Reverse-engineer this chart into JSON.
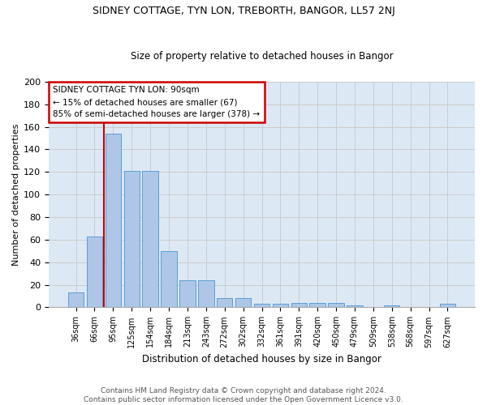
{
  "title": "SIDNEY COTTAGE, TYN LON, TREBORTH, BANGOR, LL57 2NJ",
  "subtitle": "Size of property relative to detached houses in Bangor",
  "xlabel": "Distribution of detached houses by size in Bangor",
  "ylabel": "Number of detached properties",
  "categories": [
    "36sqm",
    "66sqm",
    "95sqm",
    "125sqm",
    "154sqm",
    "184sqm",
    "213sqm",
    "243sqm",
    "272sqm",
    "302sqm",
    "332sqm",
    "361sqm",
    "391sqm",
    "420sqm",
    "450sqm",
    "479sqm",
    "509sqm",
    "538sqm",
    "568sqm",
    "597sqm",
    "627sqm"
  ],
  "values": [
    13,
    63,
    154,
    121,
    121,
    50,
    24,
    24,
    8,
    8,
    3,
    3,
    4,
    4,
    4,
    2,
    0,
    2,
    0,
    0,
    3
  ],
  "bar_color": "#aec6e8",
  "bar_edge_color": "#5a9fd4",
  "grid_color": "#cccccc",
  "bg_color": "#dde8f5",
  "vline_color": "#cc0000",
  "vline_index": 1.5,
  "annotation_text": "SIDNEY COTTAGE TYN LON: 90sqm\n← 15% of detached houses are smaller (67)\n85% of semi-detached houses are larger (378) →",
  "annotation_box_color": "#cc0000",
  "footer": "Contains HM Land Registry data © Crown copyright and database right 2024.\nContains public sector information licensed under the Open Government Licence v3.0.",
  "ylim": [
    0,
    200
  ],
  "yticks": [
    0,
    20,
    40,
    60,
    80,
    100,
    120,
    140,
    160,
    180,
    200
  ]
}
